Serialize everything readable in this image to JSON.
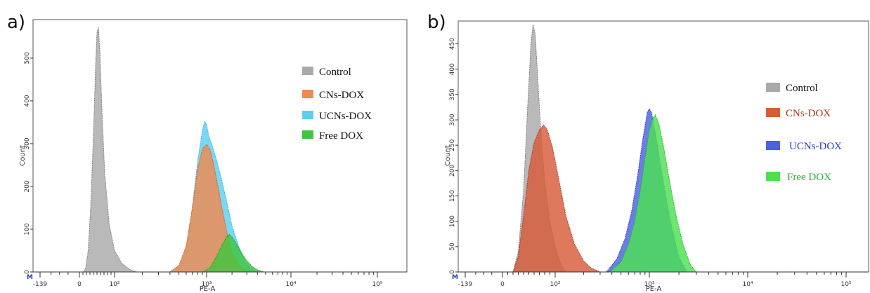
{
  "chart_data": [
    {
      "panel_label": "a)",
      "type": "area",
      "xlabel": "PE-A",
      "ylabel": "Count",
      "x_tick_labels": [
        "-139",
        "0",
        "10²",
        "10³",
        "10⁴",
        "10⁵"
      ],
      "x_tick_values": [
        -139,
        0,
        100,
        1000,
        10000,
        100000
      ],
      "y_tick_labels": [
        "0",
        "100",
        "200",
        "300",
        "400",
        "500"
      ],
      "ylim": [
        0,
        590
      ],
      "x_scale": "biexponential",
      "marker_label": "M",
      "legend": {
        "position": "top-right"
      },
      "series": [
        {
          "name": "Control",
          "color": "#a9a9a9",
          "edge": "#7c7c7c",
          "x": [
            12,
            18,
            25,
            32,
            40,
            46,
            50,
            54,
            58,
            64,
            72,
            85,
            100,
            120,
            145,
            175
          ],
          "y": [
            0,
            10,
            50,
            150,
            320,
            480,
            560,
            572,
            520,
            380,
            230,
            110,
            50,
            20,
            6,
            0
          ]
        },
        {
          "name": "UCNs-DOX",
          "color": "#5ccff0",
          "edge": "#36b5dc",
          "x": [
            400,
            500,
            600,
            700,
            800,
            900,
            950,
            1000,
            1060,
            1150,
            1300,
            1500,
            1750,
            2000,
            2400,
            2800,
            3300,
            4000
          ],
          "y": [
            0,
            15,
            55,
            150,
            260,
            330,
            352,
            345,
            318,
            298,
            265,
            218,
            160,
            108,
            60,
            28,
            8,
            0
          ]
        },
        {
          "name": "CNs-DOX",
          "color": "#f08a4e",
          "edge": "#d9571d",
          "x": [
            400,
            500,
            600,
            700,
            800,
            900,
            1000,
            1100,
            1200,
            1350,
            1500,
            1750,
            2000,
            2300,
            2700,
            3200
          ],
          "y": [
            0,
            15,
            60,
            150,
            240,
            288,
            298,
            285,
            255,
            205,
            155,
            90,
            45,
            20,
            6,
            0
          ]
        },
        {
          "name": "Free DOX",
          "color": "#3ec63e",
          "edge": "#1e9a1e",
          "x": [
            900,
            1100,
            1300,
            1500,
            1700,
            1850,
            2000,
            2200,
            2500,
            2900,
            3400,
            4000,
            4800
          ],
          "y": [
            0,
            10,
            35,
            60,
            80,
            88,
            82,
            70,
            50,
            30,
            14,
            5,
            0
          ]
        }
      ]
    },
    {
      "panel_label": "b)",
      "type": "area",
      "xlabel": "PE-A",
      "ylabel": "Count",
      "x_tick_labels": [
        "-139",
        "0",
        "10²",
        "10³",
        "10⁴",
        "10⁵"
      ],
      "x_tick_values": [
        -139,
        0,
        100,
        1000,
        10000,
        100000
      ],
      "y_tick_labels": [
        "0",
        "50",
        "100",
        "150",
        "200",
        "250",
        "300",
        "350",
        "400",
        "450"
      ],
      "ylim": [
        0,
        495
      ],
      "x_scale": "biexponential",
      "marker_label": "M",
      "legend": {
        "position": "right"
      },
      "series": [
        {
          "name": "Control",
          "color": "#a9a9a9",
          "edge": "#7c7c7c",
          "x": [
            20,
            30,
            40,
            48,
            54,
            58,
            62,
            66,
            72,
            80,
            90,
            100,
            115,
            130
          ],
          "y": [
            0,
            40,
            160,
            330,
            450,
            488,
            470,
            400,
            290,
            180,
            100,
            50,
            15,
            0
          ]
        },
        {
          "name": "CNs-DOX",
          "color": "#d85c3a",
          "edge": "#a8321a",
          "x": [
            20,
            30,
            40,
            50,
            60,
            70,
            78,
            85,
            95,
            110,
            130,
            160,
            200,
            240,
            300
          ],
          "y": [
            0,
            30,
            110,
            200,
            255,
            280,
            290,
            280,
            245,
            180,
            110,
            55,
            22,
            8,
            0
          ]
        },
        {
          "name": "UCNs-DOX",
          "color": "#4a62e0",
          "edge": "#2a3ad0",
          "x": [
            350,
            450,
            550,
            650,
            750,
            850,
            950,
            1000,
            1050,
            1150,
            1300,
            1500,
            1700,
            2000,
            2400
          ],
          "y": [
            0,
            25,
            65,
            120,
            190,
            260,
            315,
            322,
            315,
            275,
            210,
            140,
            85,
            30,
            0
          ]
        },
        {
          "name": "Free DOX",
          "color": "#4de052",
          "edge": "#22b030",
          "x": [
            380,
            500,
            600,
            700,
            800,
            900,
            1000,
            1100,
            1150,
            1250,
            1400,
            1600,
            1900,
            2200,
            2600,
            3000
          ],
          "y": [
            0,
            20,
            55,
            100,
            160,
            225,
            280,
            306,
            310,
            292,
            245,
            180,
            105,
            55,
            15,
            0
          ]
        }
      ]
    }
  ]
}
